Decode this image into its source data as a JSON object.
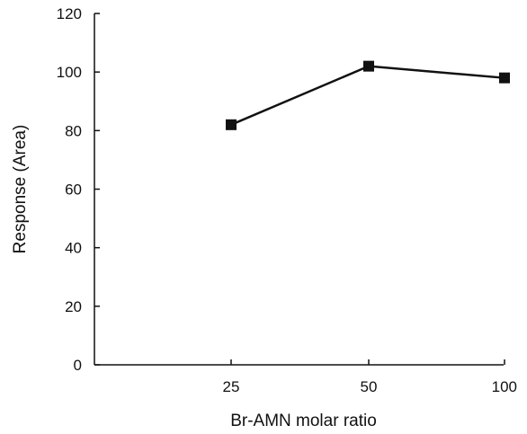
{
  "chart_data": {
    "type": "line",
    "title": "",
    "xlabel": "Br-AMN molar ratio",
    "ylabel": "Response (Area)",
    "categories": [
      "25",
      "50",
      "100"
    ],
    "ylim": [
      0,
      120
    ],
    "yticks": [
      0,
      20,
      40,
      60,
      80,
      100,
      120
    ],
    "grid": false,
    "legend": "none",
    "series": [
      {
        "values": [
          82,
          102,
          98
        ],
        "marker": "square",
        "color": "#111111"
      }
    ]
  }
}
